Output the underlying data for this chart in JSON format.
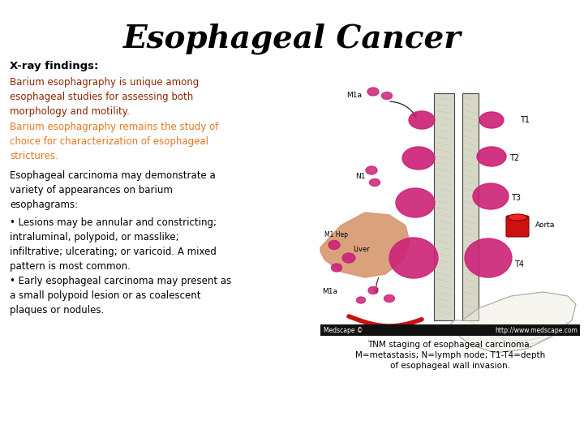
{
  "title": "Esophageal Cancer",
  "title_fontsize": 28,
  "title_fontstyle": "italic",
  "title_fontweight": "bold",
  "title_color": "#000000",
  "bg_color": "#ffffff",
  "subtitle": "X-ray findings:",
  "subtitle_fontsize": 9.5,
  "subtitle_fontweight": "bold",
  "subtitle_color": "#000000",
  "para1": "Barium esophagraphy is unique among\nesophageal studies for assessing both\nmorphology and motility.",
  "para1_color": "#8B2500",
  "para1_fontsize": 8.5,
  "para2": "Barium esophagraphy remains the study of\nchoice for characterization of esophageal\nstrictures.",
  "para2_color": "#E07820",
  "para2_fontsize": 8.5,
  "para3": "Esophageal carcinoma may demonstrate a\nvariety of appearances on barium\nesophagrams:",
  "para3_color": "#000000",
  "para3_fontsize": 8.5,
  "para4": "• Lesions may be annular and constricting;\nintraluminal, polypoid, or masslike;\ninfiltrative; ulcerating; or varicoid. A mixed\npattern is most common.\n• Early esophageal carcinoma may present as\na small polypoid lesion or as coalescent\nplaques or nodules.",
  "para4_color": "#000000",
  "para4_fontsize": 8.5,
  "caption": "TNM staging of esophageal carcinoma.\nM=metastasis; N=lymph node; T1-T4=depth\nof esophageal wall invasion.",
  "caption_color": "#000000",
  "caption_fontsize": 7.5,
  "medscape_bar_color": "#111111",
  "medscape_text": "Medscape ©",
  "medscape_url": "http://www.medscape.com",
  "tumor_color": "#CC2277",
  "liver_color": "#D4956A",
  "aorta_color": "#CC1111",
  "celiac_color": "#CC1111"
}
